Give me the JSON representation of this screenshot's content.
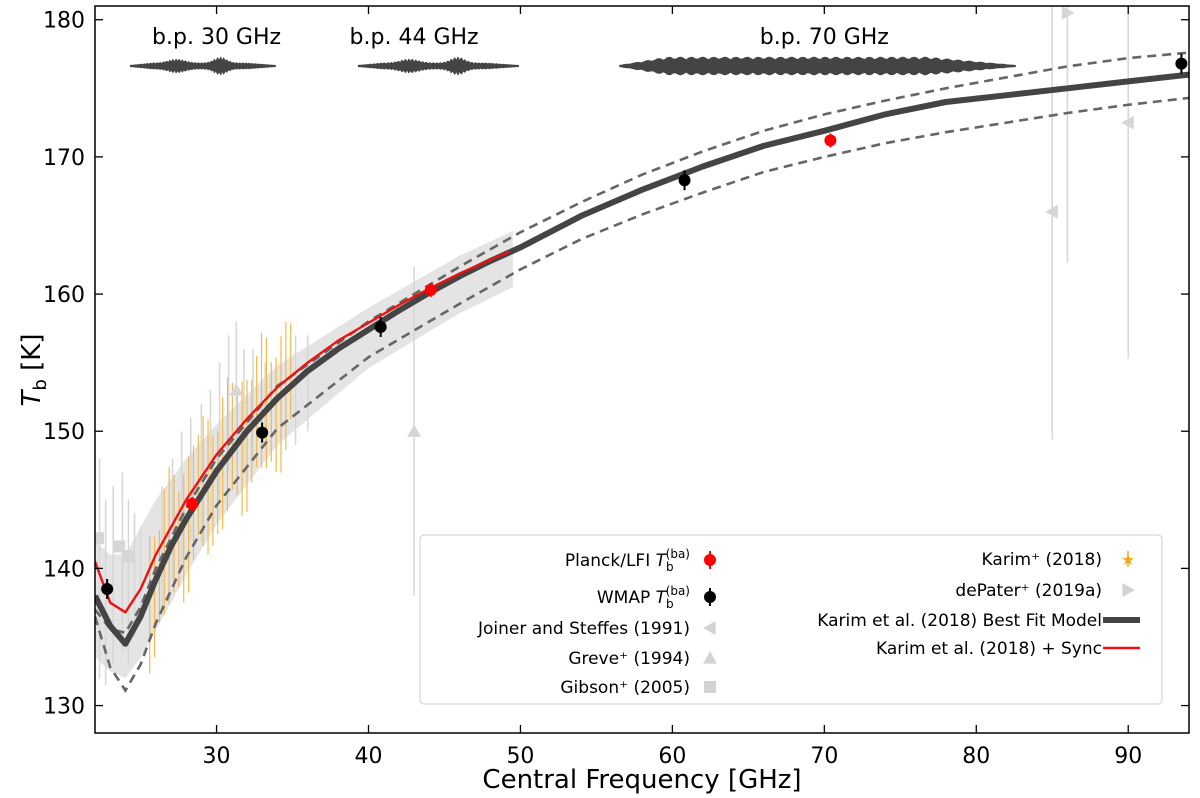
{
  "chart_data": {
    "type": "line",
    "title": "",
    "xlabel": "Central Frequency [GHz]",
    "ylabel": "T_b [K]",
    "ylabel_main": "T",
    "ylabel_sub": "b",
    "ylabel_unit": " [K]",
    "xlim": [
      22,
      94
    ],
    "ylim": [
      128,
      181
    ],
    "xticks": [
      30,
      40,
      50,
      60,
      70,
      80,
      90
    ],
    "yticks": [
      130,
      140,
      150,
      160,
      170,
      180
    ],
    "bandpass_labels": [
      {
        "text": "b.p. 30 GHz",
        "x_center": 30.0,
        "x_range": [
          24.3,
          33.9
        ],
        "kind": "narrow"
      },
      {
        "text": "b.p. 44 GHz",
        "x_center": 43.0,
        "x_range": [
          39.3,
          49.9
        ],
        "kind": "narrow"
      },
      {
        "text": "b.p. 70 GHz",
        "x_center": 70.0,
        "x_range": [
          56.5,
          82.6
        ],
        "kind": "wide"
      }
    ],
    "series": [
      {
        "name": "Karim et al. (2018) Best Fit Model",
        "color": "#444444",
        "x": [
          22,
          23,
          24,
          25,
          26,
          27,
          28,
          30,
          32,
          34,
          36,
          38,
          40,
          42,
          44,
          46,
          48,
          50,
          54,
          58,
          62,
          66,
          70,
          74,
          78,
          82,
          86,
          90,
          94
        ],
        "y": [
          138.0,
          135.8,
          134.5,
          136.5,
          139.2,
          141.6,
          143.6,
          147.1,
          150.0,
          152.4,
          154.4,
          156.0,
          157.4,
          158.8,
          160.1,
          161.3,
          162.4,
          163.4,
          165.7,
          167.6,
          169.3,
          170.8,
          171.9,
          173.1,
          174.0,
          174.5,
          175.0,
          175.5,
          176.0
        ]
      },
      {
        "name": "Upper model envelope",
        "color": "#666666",
        "x": [
          22,
          23,
          24,
          25,
          26,
          28,
          30,
          34,
          40,
          46,
          50,
          54,
          58,
          62,
          66,
          70,
          74,
          78,
          82,
          86,
          90,
          94
        ],
        "y": [
          137.0,
          135.6,
          135.3,
          137.2,
          140.0,
          144.4,
          148.0,
          153.3,
          158.0,
          162.0,
          164.5,
          166.7,
          168.7,
          170.4,
          171.9,
          173.1,
          174.1,
          175.0,
          175.8,
          176.6,
          177.2,
          177.6
        ]
      },
      {
        "name": "Lower model envelope",
        "color": "#666666",
        "x": [
          22,
          23,
          24,
          25,
          26,
          28,
          30,
          34,
          40,
          46,
          50,
          54,
          58,
          62,
          66,
          70,
          74,
          78,
          82,
          86,
          90,
          94
        ],
        "y": [
          136.5,
          132.8,
          131.1,
          133.0,
          136.0,
          140.8,
          144.6,
          150.2,
          155.4,
          159.3,
          161.8,
          164.0,
          165.8,
          167.4,
          168.9,
          170.0,
          171.0,
          171.8,
          172.5,
          173.2,
          173.8,
          174.3
        ]
      },
      {
        "name": "Karim et al. (2018) + Sync",
        "color": "#ee1111",
        "x": [
          22,
          23,
          24,
          25,
          26,
          28,
          30,
          32,
          34,
          36,
          38,
          40,
          42,
          44,
          46,
          48,
          49.3
        ],
        "y": [
          140.5,
          137.5,
          136.8,
          138.5,
          141.0,
          145.0,
          148.3,
          150.9,
          153.2,
          155.0,
          156.6,
          157.9,
          159.2,
          160.4,
          161.5,
          162.5,
          163.1
        ]
      }
    ],
    "points": {
      "planck": {
        "name": "Planck/LFI",
        "color": "#ff0000",
        "x": [
          28.4,
          44.1,
          70.4
        ],
        "y": [
          144.7,
          160.3,
          171.2
        ]
      },
      "wmap": {
        "name": "WMAP",
        "color": "#000000",
        "x": [
          22.8,
          33.0,
          40.8,
          60.8,
          93.5
        ],
        "y": [
          138.5,
          149.9,
          157.6,
          168.3,
          176.8
        ]
      },
      "joiner": {
        "name": "Joiner and Steffes (1991)",
        "color": "#d3d3d3",
        "x": [
          85.0,
          90.0
        ],
        "y": [
          166.0,
          172.5
        ]
      },
      "greve": {
        "name": "Greve+ (1994)",
        "color": "#d3d3d3",
        "x": [
          31.3,
          43.0
        ],
        "y": [
          153.0,
          150.0
        ]
      },
      "gibson": {
        "name": "Gibson+ (2005)",
        "color": "#d3d3d3",
        "x": [
          22.2,
          23.6,
          24.2
        ],
        "y": [
          142.2,
          141.6,
          140.9
        ]
      },
      "depater": {
        "name": "dePater+ (2019a)",
        "color": "#d3d3d3",
        "x": [
          86.0
        ],
        "y": [
          180.5
        ]
      },
      "karim": {
        "name": "Karim+ (2018)",
        "color": "#f5a623"
      }
    },
    "legend": {
      "placement": "lower-right",
      "col1": [
        {
          "label": "Planck/LFI T_b^(ba)",
          "label_main": "Planck/LFI ",
          "label_sym": "T",
          "label_sub": "b",
          "label_sup": "(ba)",
          "marker": "circle",
          "color": "#ff0000"
        },
        {
          "label": "WMAP T_b^(ba)",
          "label_main": "WMAP ",
          "label_sym": "T",
          "label_sub": "b",
          "label_sup": "(ba)",
          "marker": "circle",
          "color": "#000000"
        },
        {
          "label": "Joiner and Steffes (1991)",
          "marker": "triangle-left",
          "color": "#d3d3d3"
        },
        {
          "label": "Greve⁺ (1994)",
          "marker": "triangle-up",
          "color": "#d3d3d3"
        },
        {
          "label": "Gibson⁺ (2005)",
          "marker": "square",
          "color": "#d3d3d3"
        }
      ],
      "col2": [
        {
          "label": "Karim⁺ (2018)",
          "marker": "star",
          "color": "#f5a623"
        },
        {
          "label": "dePater⁺ (2019a)",
          "marker": "triangle-right",
          "color": "#d3d3d3"
        },
        {
          "label": "Karim et al. (2018) Best Fit Model",
          "marker": "thick-line",
          "color": "#444444"
        },
        {
          "label": "Karim et al. (2018) + Sync",
          "marker": "line",
          "color": "#ee1111"
        }
      ]
    }
  }
}
